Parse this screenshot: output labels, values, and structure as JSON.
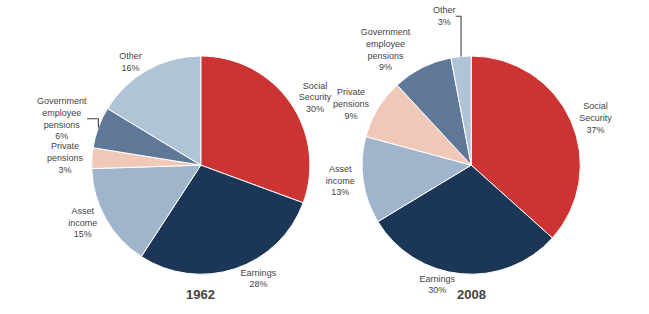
{
  "chart_data": [
    {
      "type": "pie",
      "title": "1962",
      "categories": [
        "Social\nSecurity",
        "Earnings",
        "Asset\nincome",
        "Private\npensions",
        "Government\nemployee\npensions",
        "Other"
      ],
      "values": [
        30,
        28,
        15,
        3,
        6,
        16
      ],
      "value_labels": [
        "30%",
        "28%",
        "15%",
        "3%",
        "6%",
        "16%"
      ],
      "colors": [
        "#cc3333",
        "#1c3657",
        "#a0b4cc",
        "#f0c8b8",
        "#607898",
        "#b0c4d8"
      ],
      "data_labels": true
    },
    {
      "type": "pie",
      "title": "2008",
      "categories": [
        "Social\nSecurity",
        "Earnings",
        "Asset\nincome",
        "Private\npensions",
        "Government\nemployee\npensions",
        "Other"
      ],
      "values": [
        37,
        30,
        13,
        9,
        9,
        3
      ],
      "value_labels": [
        "37%",
        "30%",
        "13%",
        "9%",
        "9%",
        "3%"
      ],
      "colors": [
        "#cc3333",
        "#1c3657",
        "#a0b4cc",
        "#f0c8b8",
        "#607898",
        "#b0c4d8"
      ],
      "data_labels": true
    }
  ]
}
